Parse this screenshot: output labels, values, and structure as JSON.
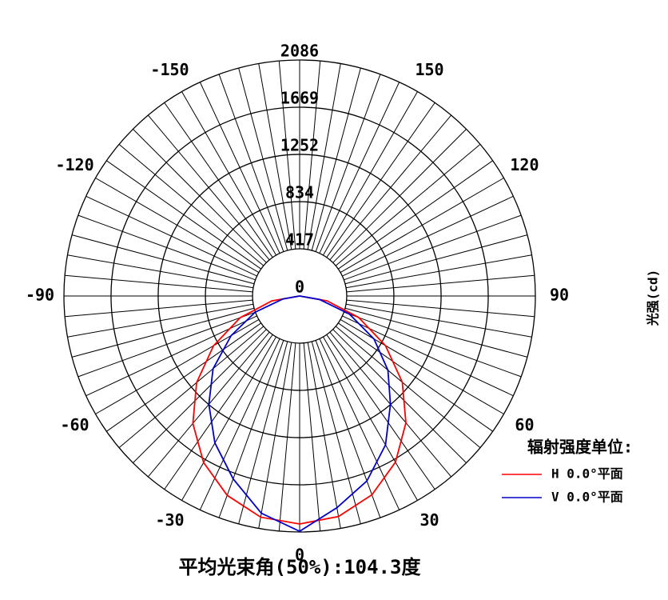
{
  "chart_data": {
    "type": "polar",
    "title": "平均光束角(50%):104.3度",
    "r_label": "光强(cd)",
    "legend_title": "辐射强度单位:",
    "rlim": [
      0,
      2086
    ],
    "rticks": [
      0,
      417,
      834,
      1252,
      1669,
      2086
    ],
    "angle_ticks": [
      -150,
      -120,
      -90,
      -60,
      -30,
      0,
      30,
      60,
      90,
      120,
      150
    ],
    "theta": [
      -90,
      -80,
      -70,
      -60,
      -50,
      -40,
      -30,
      -20,
      -10,
      0,
      10,
      20,
      30,
      40,
      50,
      60,
      70,
      80,
      90
    ],
    "series": [
      {
        "name": "H 0.0°平面",
        "color": "#ff0000",
        "values": [
          0,
          250,
          560,
          880,
          1190,
          1470,
          1700,
          1875,
          1985,
          2015,
          1979,
          1870,
          1696,
          1463,
          1186,
          877,
          556,
          247,
          0
        ]
      },
      {
        "name": "V 0.0°平面",
        "color": "#0000cc",
        "values": [
          0,
          150,
          420,
          700,
          1000,
          1250,
          1500,
          1720,
          1950,
          2080,
          1900,
          1740,
          1520,
          1250,
          1020,
          760,
          470,
          180,
          0
        ]
      }
    ]
  }
}
